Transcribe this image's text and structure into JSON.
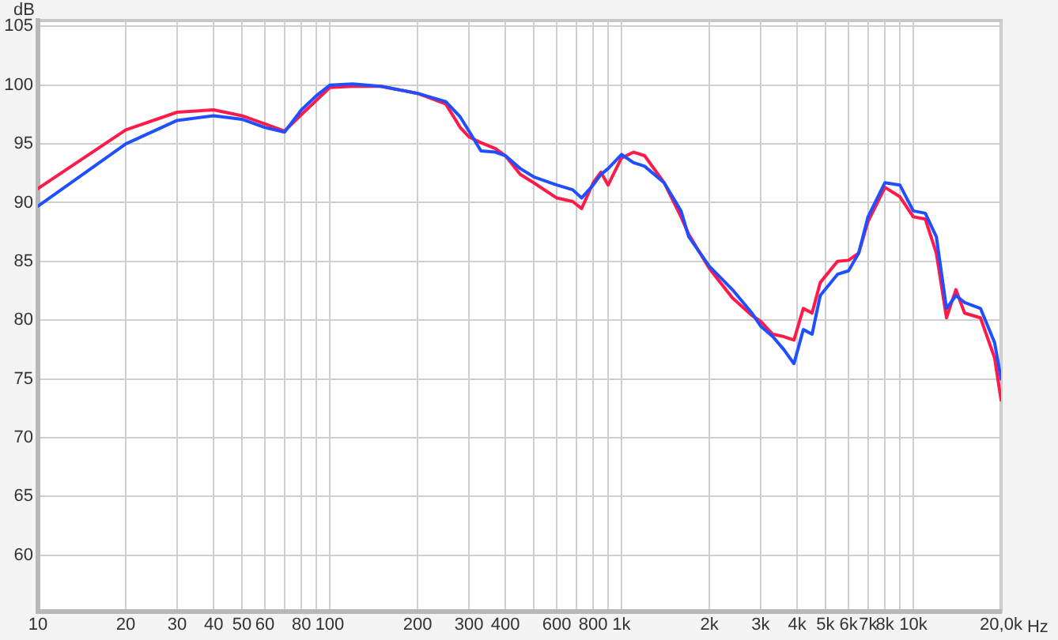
{
  "chart_data": {
    "type": "line",
    "xlabel": "Hz",
    "ylabel": "dB",
    "log": "x",
    "grid": true,
    "legend": false,
    "marker": "none",
    "line_style": "solid",
    "xlim": [
      10,
      20000
    ],
    "ylim": [
      55.2,
      105.5
    ],
    "xticks": [
      10,
      20,
      30,
      40,
      50,
      60,
      {
        "value": 70,
        "label": null
      },
      80,
      {
        "value": 90,
        "label": null
      },
      100,
      200,
      300,
      400,
      {
        "value": 500,
        "label": null
      },
      600,
      {
        "value": 700,
        "label": null
      },
      800,
      {
        "value": 900,
        "label": null
      },
      {
        "value": 1000,
        "label": "1k"
      },
      {
        "value": 2000,
        "label": "2k"
      },
      {
        "value": 3000,
        "label": "3k"
      },
      {
        "value": 4000,
        "label": "4k"
      },
      {
        "value": 5000,
        "label": "5k"
      },
      {
        "value": 6000,
        "label": "6k"
      },
      {
        "value": 7000,
        "label": "7k"
      },
      {
        "value": 8000,
        "label": "8k"
      },
      {
        "value": 9000,
        "label": null
      },
      {
        "value": 10000,
        "label": "10k"
      },
      {
        "value": 20000,
        "label": "20,0k"
      }
    ],
    "yticks": [
      60,
      65,
      70,
      75,
      80,
      85,
      90,
      95,
      100,
      105
    ],
    "x": [
      10,
      20,
      30,
      40,
      50,
      60,
      70,
      80,
      90,
      100,
      120,
      150,
      200,
      250,
      280,
      300,
      330,
      370,
      400,
      450,
      500,
      600,
      680,
      730,
      800,
      850,
      900,
      1000,
      1100,
      1200,
      1400,
      1600,
      1700,
      2000,
      2400,
      2800,
      3000,
      3300,
      3600,
      3900,
      4200,
      4500,
      4800,
      5500,
      6000,
      6500,
      7000,
      8000,
      9000,
      10000,
      11000,
      12000,
      13000,
      14000,
      15000,
      17000,
      19000,
      20000
    ],
    "series": [
      {
        "color": "#1f4fff",
        "values": [
          89.7,
          95.0,
          97.0,
          97.4,
          97.1,
          96.4,
          96.0,
          97.9,
          99.1,
          100.0,
          100.1,
          99.9,
          99.3,
          98.6,
          97.3,
          96.1,
          94.4,
          94.3,
          94.0,
          92.9,
          92.2,
          91.5,
          91.1,
          90.4,
          91.5,
          92.4,
          92.9,
          94.1,
          93.4,
          93.1,
          91.7,
          89.3,
          87.1,
          84.6,
          82.6,
          80.6,
          79.5,
          78.6,
          77.5,
          76.3,
          79.2,
          78.8,
          82.1,
          83.9,
          84.2,
          85.7,
          88.8,
          91.7,
          91.5,
          89.3,
          89.1,
          87.1,
          81.0,
          82.1,
          81.5,
          81.0,
          78.1,
          75.0
        ]
      },
      {
        "color": "#ff1a4a",
        "values": [
          91.2,
          96.2,
          97.7,
          97.9,
          97.4,
          96.7,
          96.1,
          97.5,
          98.7,
          99.8,
          99.9,
          99.9,
          99.3,
          98.4,
          96.4,
          95.6,
          95.1,
          94.6,
          94.0,
          92.4,
          91.7,
          90.4,
          90.1,
          89.5,
          91.7,
          92.6,
          91.5,
          93.8,
          94.3,
          94.0,
          91.7,
          88.8,
          87.3,
          84.4,
          81.9,
          80.4,
          79.9,
          78.8,
          78.6,
          78.3,
          81.0,
          80.6,
          83.2,
          85.0,
          85.1,
          85.7,
          88.4,
          91.3,
          90.5,
          88.8,
          88.6,
          85.7,
          80.2,
          82.6,
          80.6,
          80.2,
          76.8,
          73.2
        ]
      }
    ]
  }
}
